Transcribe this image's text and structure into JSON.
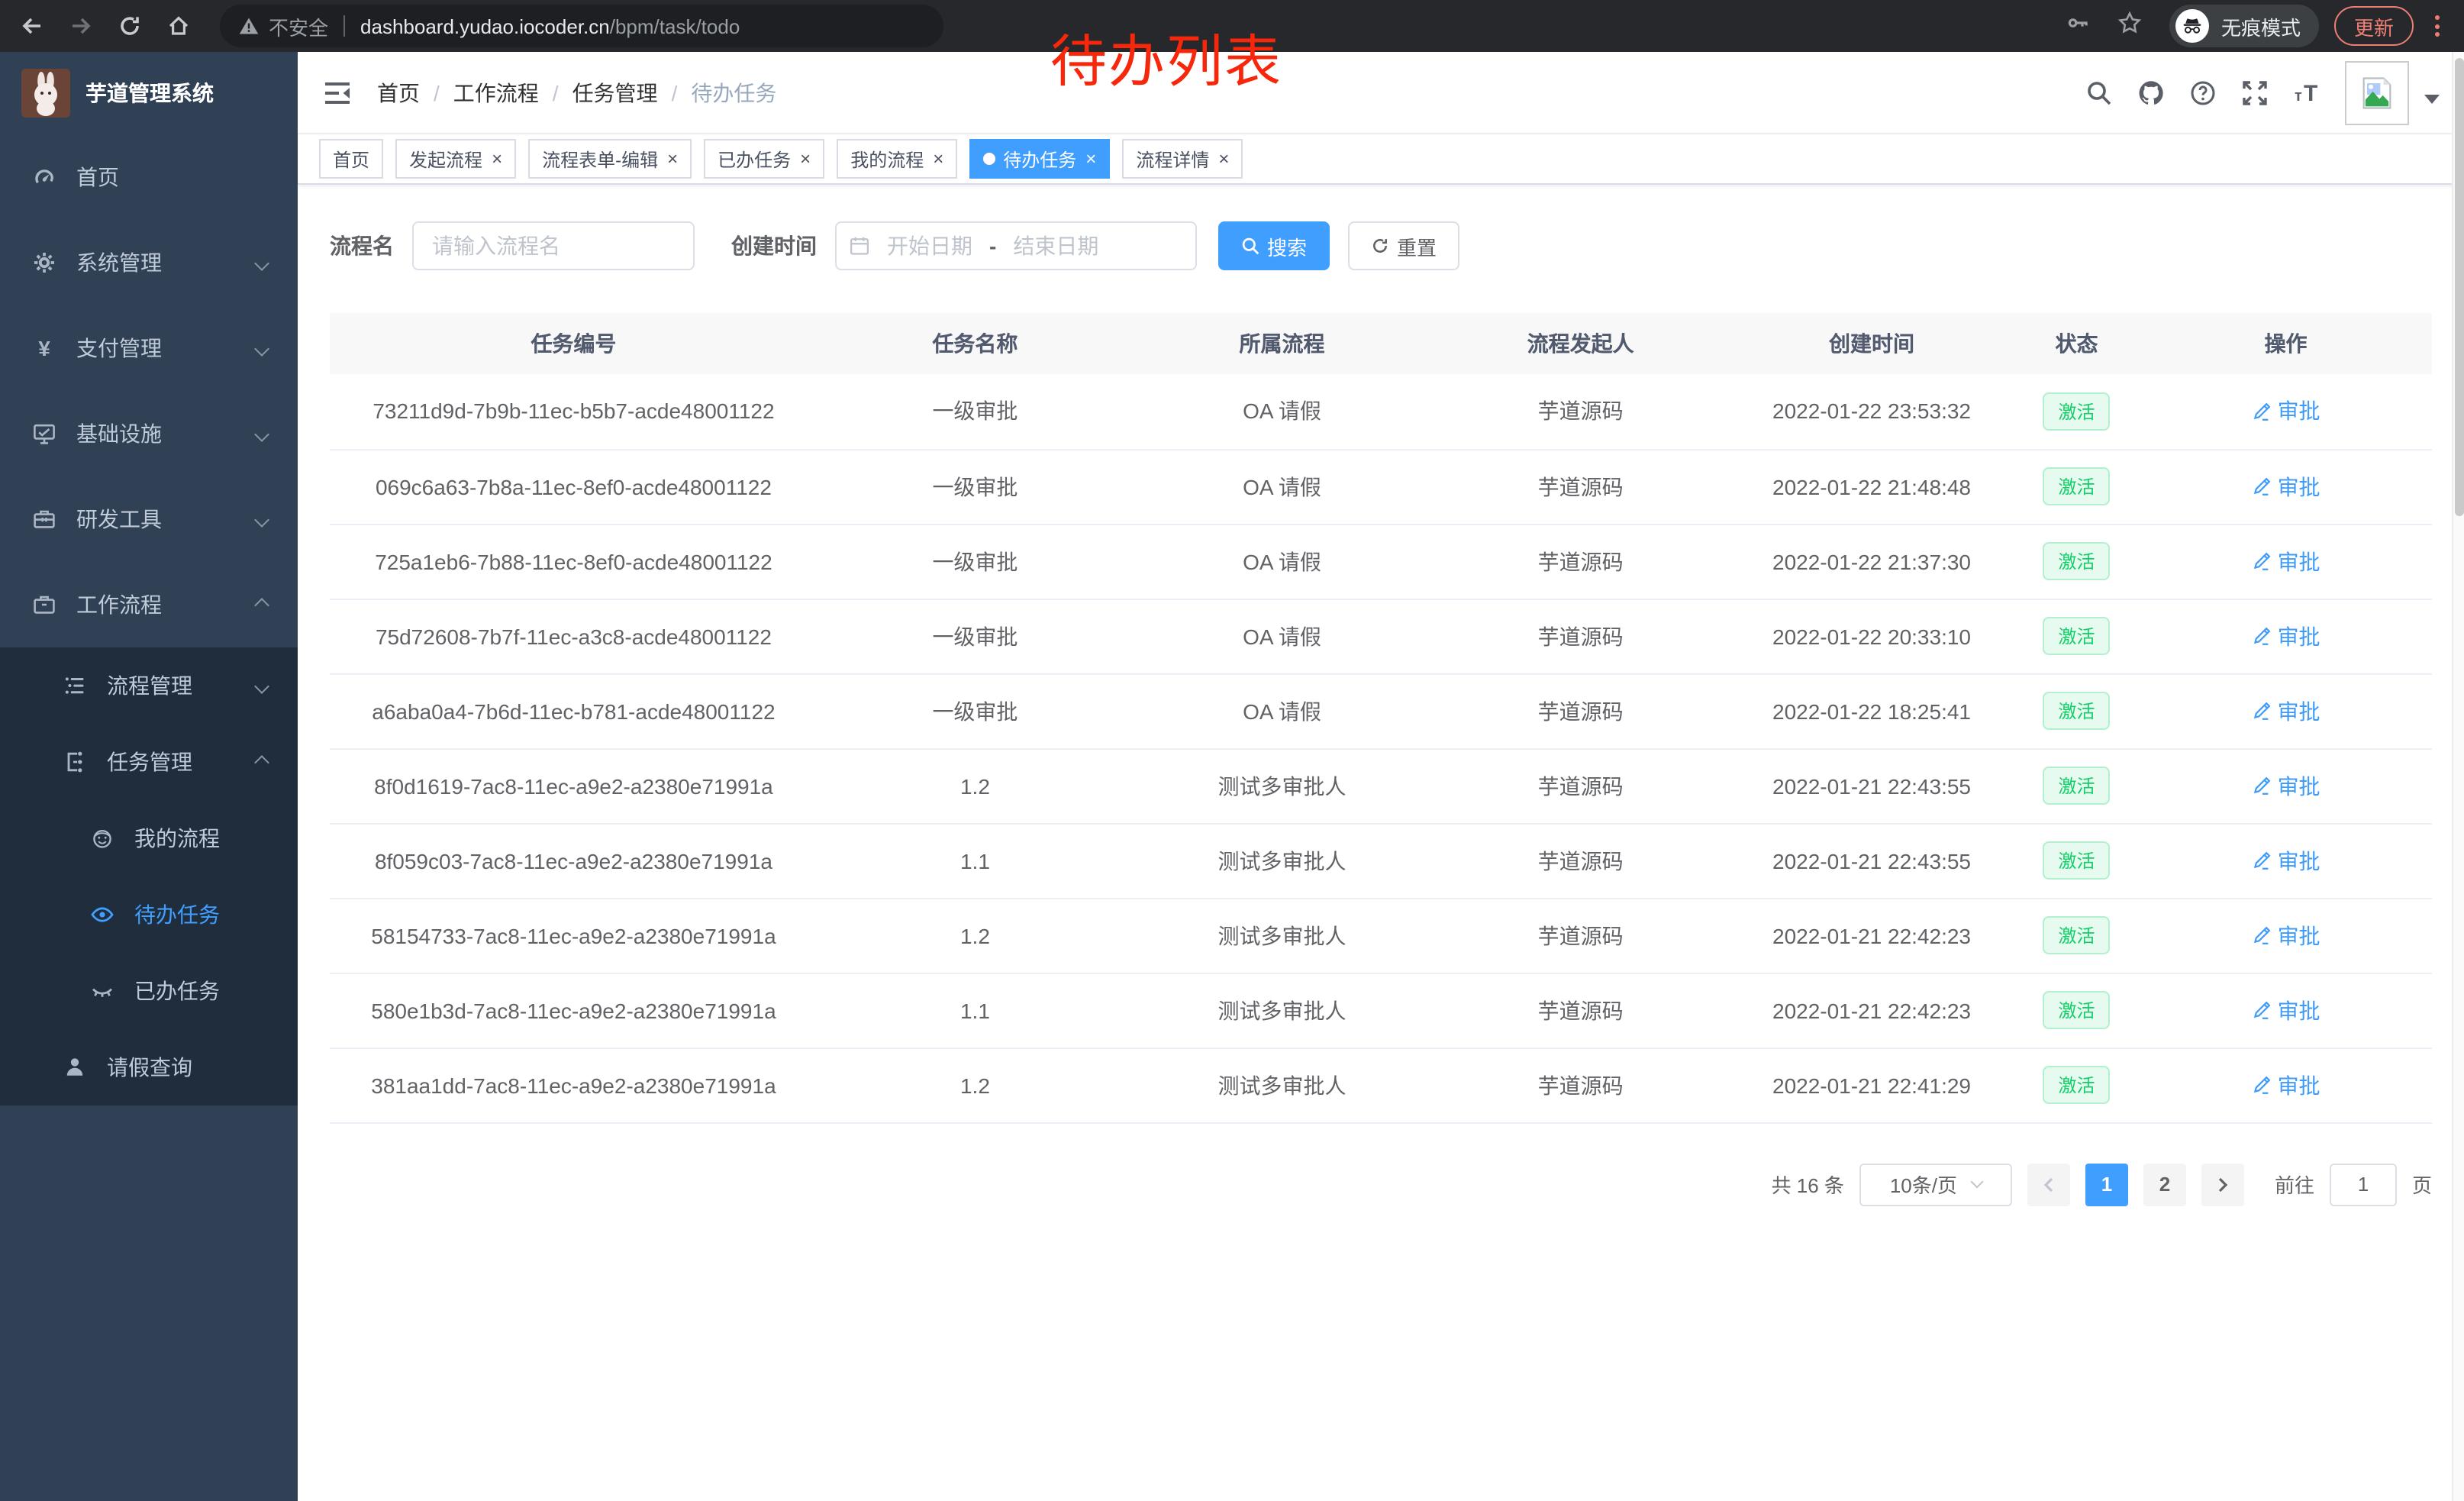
{
  "browser": {
    "security": "不安全",
    "url_host": "dashboard.yudao.iocoder.cn",
    "url_path": "/bpm/task/todo",
    "incognito": "无痕模式",
    "update": "更新"
  },
  "annotation": {
    "text": "待办列表",
    "color": "#f7270b"
  },
  "sidebar": {
    "title": "芋道管理系统",
    "menu": [
      {
        "label": "首页",
        "icon": "gauge",
        "level": 0
      },
      {
        "label": "系统管理",
        "icon": "gear",
        "level": 0,
        "chevron": "down"
      },
      {
        "label": "支付管理",
        "icon": "yen",
        "level": 0,
        "chevron": "down"
      },
      {
        "label": "基础设施",
        "icon": "monitor",
        "level": 0,
        "chevron": "down"
      },
      {
        "label": "研发工具",
        "icon": "toolbox",
        "level": 0,
        "chevron": "down"
      },
      {
        "label": "工作流程",
        "icon": "briefcase",
        "level": 0,
        "chevron": "up"
      },
      {
        "label": "流程管理",
        "icon": "tree",
        "level": 1,
        "chevron": "down",
        "sub": true
      },
      {
        "label": "任务管理",
        "icon": "flow",
        "level": 1,
        "chevron": "up",
        "sub": true
      },
      {
        "label": "我的流程",
        "icon": "face",
        "level": 2,
        "sub": true
      },
      {
        "label": "待办任务",
        "icon": "eye",
        "level": 2,
        "sub": true,
        "active": true
      },
      {
        "label": "已办任务",
        "icon": "eye-closed",
        "level": 2,
        "sub": true
      },
      {
        "label": "请假查询",
        "icon": "person",
        "level": 1,
        "sub": true
      }
    ]
  },
  "header": {
    "breadcrumb": [
      "首页",
      "工作流程",
      "任务管理",
      "待办任务"
    ],
    "separator": "/"
  },
  "tabs": [
    {
      "label": "首页"
    },
    {
      "label": "发起流程",
      "closable": true
    },
    {
      "label": "流程表单-编辑",
      "closable": true
    },
    {
      "label": "已办任务",
      "closable": true
    },
    {
      "label": "我的流程",
      "closable": true
    },
    {
      "label": "待办任务",
      "closable": true,
      "active": true
    },
    {
      "label": "流程详情",
      "closable": true
    }
  ],
  "filters": {
    "name_label": "流程名",
    "name_placeholder": "请输入流程名",
    "time_label": "创建时间",
    "start_placeholder": "开始日期",
    "range_separator": "-",
    "end_placeholder": "结束日期",
    "search_label": "搜索",
    "reset_label": "重置"
  },
  "table": {
    "columns": [
      "任务编号",
      "任务名称",
      "所属流程",
      "流程发起人",
      "创建时间",
      "状态",
      "操作"
    ],
    "status_label": "激活",
    "action_label": "审批",
    "rows": [
      {
        "id": "73211d9d-7b9b-11ec-b5b7-acde48001122",
        "name": "一级审批",
        "process": "OA 请假",
        "starter": "芋道源码",
        "created": "2022-01-22 23:53:32"
      },
      {
        "id": "069c6a63-7b8a-11ec-8ef0-acde48001122",
        "name": "一级审批",
        "process": "OA 请假",
        "starter": "芋道源码",
        "created": "2022-01-22 21:48:48"
      },
      {
        "id": "725a1eb6-7b88-11ec-8ef0-acde48001122",
        "name": "一级审批",
        "process": "OA 请假",
        "starter": "芋道源码",
        "created": "2022-01-22 21:37:30"
      },
      {
        "id": "75d72608-7b7f-11ec-a3c8-acde48001122",
        "name": "一级审批",
        "process": "OA 请假",
        "starter": "芋道源码",
        "created": "2022-01-22 20:33:10"
      },
      {
        "id": "a6aba0a4-7b6d-11ec-b781-acde48001122",
        "name": "一级审批",
        "process": "OA 请假",
        "starter": "芋道源码",
        "created": "2022-01-22 18:25:41"
      },
      {
        "id": "8f0d1619-7ac8-11ec-a9e2-a2380e71991a",
        "name": "1.2",
        "process": "测试多审批人",
        "starter": "芋道源码",
        "created": "2022-01-21 22:43:55"
      },
      {
        "id": "8f059c03-7ac8-11ec-a9e2-a2380e71991a",
        "name": "1.1",
        "process": "测试多审批人",
        "starter": "芋道源码",
        "created": "2022-01-21 22:43:55"
      },
      {
        "id": "58154733-7ac8-11ec-a9e2-a2380e71991a",
        "name": "1.2",
        "process": "测试多审批人",
        "starter": "芋道源码",
        "created": "2022-01-21 22:42:23"
      },
      {
        "id": "580e1b3d-7ac8-11ec-a9e2-a2380e71991a",
        "name": "1.1",
        "process": "测试多审批人",
        "starter": "芋道源码",
        "created": "2022-01-21 22:42:23"
      },
      {
        "id": "381aa1dd-7ac8-11ec-a9e2-a2380e71991a",
        "name": "1.2",
        "process": "测试多审批人",
        "starter": "芋道源码",
        "created": "2022-01-21 22:41:29"
      }
    ]
  },
  "pagination": {
    "total_text": "共 16 条",
    "page_size": "10条/页",
    "pages": [
      "1",
      "2"
    ],
    "current": "1",
    "goto_label": "前往",
    "goto_value": "1",
    "goto_unit": "页"
  },
  "colors": {
    "accent": "#409eff",
    "success": "#13ce66",
    "sidebar": "#304156",
    "submenu": "#1f2d3d"
  }
}
